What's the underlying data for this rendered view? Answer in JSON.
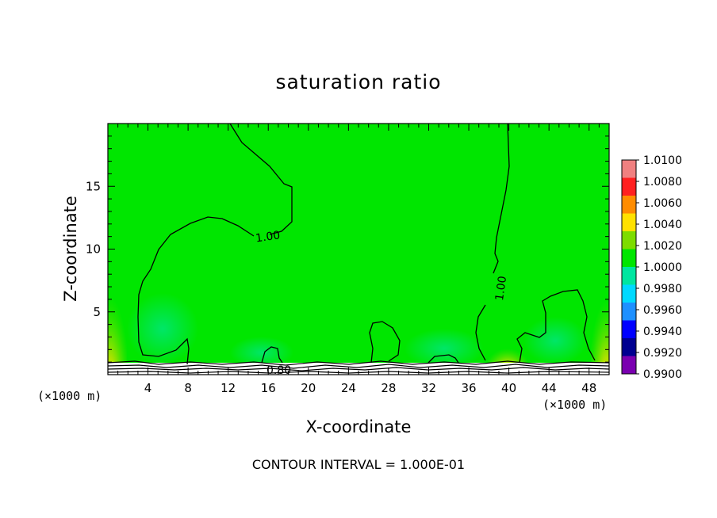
{
  "chart_data": {
    "type": "heatmap",
    "title": "saturation ratio",
    "xlabel": "X-coordinate",
    "ylabel": "Z-coordinate",
    "x_unit_label": "(×1000 m)",
    "xlim": [
      0,
      50
    ],
    "ylim": [
      0,
      20
    ],
    "x_ticks": [
      4,
      8,
      12,
      16,
      20,
      24,
      28,
      32,
      36,
      40,
      44,
      48
    ],
    "y_ticks": [
      5,
      10,
      15
    ],
    "colorbar": {
      "levels": [
        "1.0100",
        "1.0080",
        "1.0060",
        "1.0040",
        "1.0020",
        "1.0000",
        "0.9980",
        "0.9960",
        "0.9940",
        "0.9920",
        "0.9900"
      ],
      "colors": [
        "#f08080",
        "#ff2020",
        "#ff8c00",
        "#ffe100",
        "#7ddc00",
        "#00e600",
        "#00e6a0",
        "#00d9ff",
        "#1e90ff",
        "#0000ff",
        "#000090",
        "#7a00b0"
      ]
    },
    "background_value": 1.0,
    "contour_labels": [
      "1.00",
      "1.00",
      "0.80"
    ],
    "contour_interval_text": "CONTOUR INTERVAL = 1.000E-01"
  }
}
